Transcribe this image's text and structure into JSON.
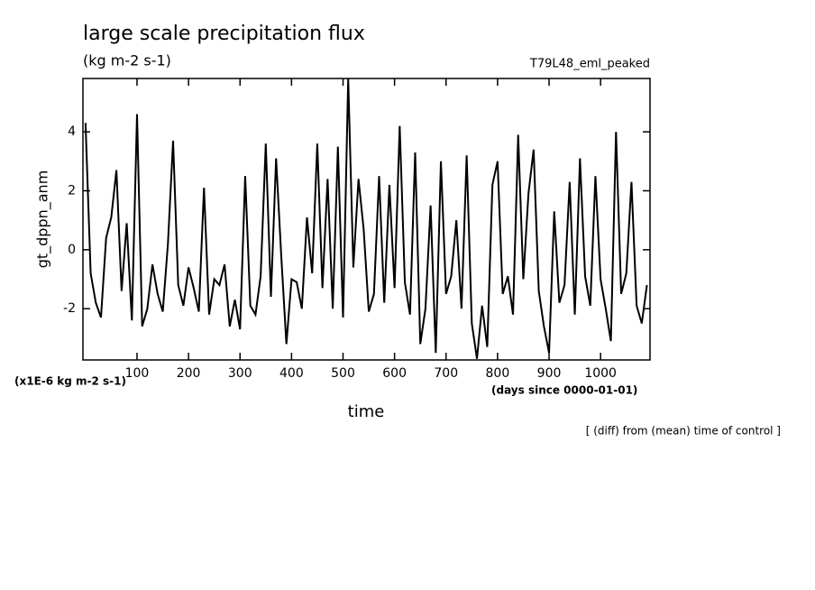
{
  "chart_data": {
    "type": "line",
    "title": "large scale precipitation flux",
    "subtitle": "(kg m-2 s-1)",
    "run_label": "T79L48_eml_peaked",
    "y_label": "gt_dppn_anm",
    "x_label": "time",
    "y_unit_label": "(x1E-6 kg m-2 s-1)",
    "x_unit_label": "(days since 0000-01-01)",
    "note": "[ (diff) from (mean) time of control ]",
    "x": [
      0,
      10,
      20,
      30,
      40,
      50,
      60,
      70,
      80,
      90,
      100,
      110,
      120,
      130,
      140,
      150,
      160,
      170,
      180,
      190,
      200,
      210,
      220,
      230,
      240,
      250,
      260,
      270,
      280,
      290,
      300,
      310,
      320,
      330,
      340,
      350,
      360,
      370,
      380,
      390,
      400,
      410,
      420,
      430,
      440,
      450,
      460,
      470,
      480,
      490,
      500,
      510,
      520,
      530,
      540,
      550,
      560,
      570,
      580,
      590,
      600,
      610,
      620,
      630,
      640,
      650,
      660,
      670,
      680,
      690,
      700,
      710,
      720,
      730,
      740,
      750,
      760,
      770,
      780,
      790,
      800,
      810,
      820,
      830,
      840,
      850,
      860,
      870,
      880,
      890,
      900,
      910,
      920,
      930,
      940,
      950,
      960,
      970,
      980,
      990,
      1000,
      1010,
      1020,
      1030,
      1040,
      1050,
      1060,
      1070,
      1080,
      1090
    ],
    "values": [
      4.3,
      -0.8,
      -1.8,
      -2.3,
      0.4,
      1.1,
      2.7,
      -1.4,
      0.9,
      -2.4,
      4.6,
      -2.6,
      -2.0,
      -0.5,
      -1.5,
      -2.1,
      0.2,
      3.7,
      -1.2,
      -1.9,
      -0.6,
      -1.3,
      -2.1,
      2.1,
      -2.2,
      -1.0,
      -1.2,
      -0.5,
      -2.6,
      -1.7,
      -2.7,
      2.5,
      -1.9,
      -2.2,
      -0.9,
      3.6,
      -1.6,
      3.1,
      -0.2,
      -3.2,
      -1.0,
      -1.1,
      -2.0,
      1.1,
      -0.8,
      3.6,
      -1.3,
      2.4,
      -2.0,
      3.5,
      -2.3,
      5.8,
      -0.6,
      2.4,
      0.7,
      -2.1,
      -1.5,
      2.5,
      -1.8,
      2.2,
      -1.3,
      4.2,
      -1.1,
      -2.2,
      3.3,
      -3.2,
      -2.0,
      1.5,
      -3.5,
      3.0,
      -1.5,
      -0.9,
      1.0,
      -2.0,
      3.2,
      -2.5,
      -3.7,
      -1.9,
      -3.3,
      2.2,
      3.0,
      -1.5,
      -0.9,
      -2.2,
      3.9,
      -1.0,
      1.9,
      3.4,
      -1.4,
      -2.6,
      -3.5,
      1.3,
      -1.8,
      -1.2,
      2.3,
      -2.2,
      3.1,
      -0.9,
      -1.9,
      2.5,
      -1.0,
      -2.0,
      -3.1,
      4.0,
      -1.5,
      -0.8,
      2.3,
      -1.9,
      -2.5,
      -1.2
    ],
    "color": "#000000",
    "xlim": [
      -5,
      1096
    ],
    "xticks": [
      100,
      200,
      300,
      400,
      500,
      600,
      700,
      800,
      900,
      1000
    ],
    "ylim": [
      -3.74,
      5.81
    ],
    "yticks": [
      -2,
      0,
      2,
      4
    ]
  }
}
